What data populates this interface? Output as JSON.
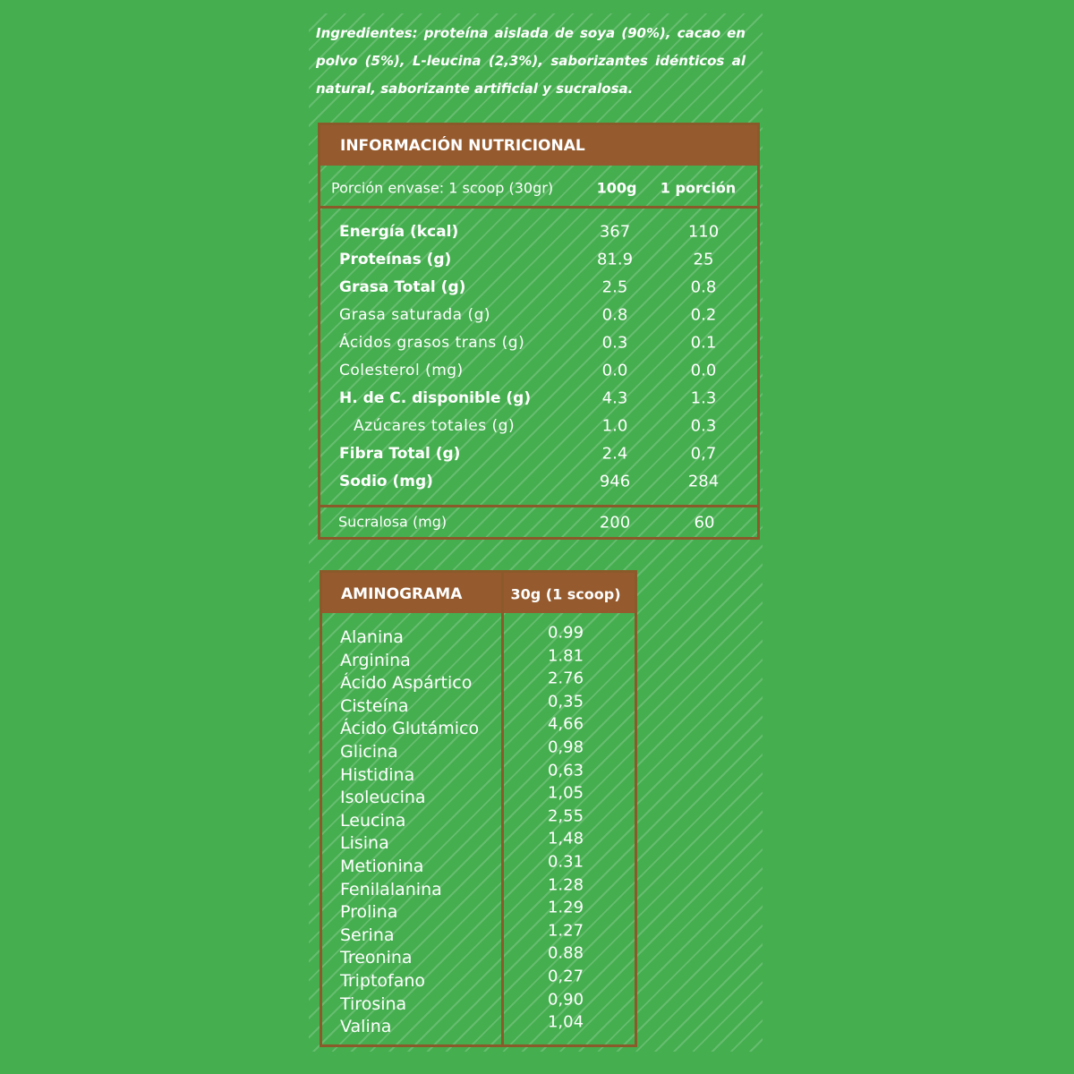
{
  "ingredients": "Ingredientes: proteína aislada de soya (90%), cacao en polvo (5%), L-leucina (2,3%), saborizantes idénticos al natural, saborizante artificial y sucralosa.",
  "nutrition": {
    "title": "INFORMACIÓN NUTRICIONAL",
    "serving": {
      "label": "Porción envase: 1 scoop (30gr)",
      "col_100g": "100g",
      "col_portion": "1 porción"
    },
    "rows": [
      {
        "name": "Energía (kcal)",
        "per_100g": "367",
        "per_portion": "110",
        "bold": true
      },
      {
        "name": "Proteínas (g)",
        "per_100g": "81.9",
        "per_portion": "25",
        "bold": true
      },
      {
        "name": "Grasa Total (g)",
        "per_100g": "2.5",
        "per_portion": "0.8",
        "bold": true
      },
      {
        "name": "Grasa saturada (g)",
        "per_100g": "0.8",
        "per_portion": "0.2",
        "bold": false
      },
      {
        "name": "Ácidos grasos trans (g)",
        "per_100g": "0.3",
        "per_portion": "0.1",
        "bold": false
      },
      {
        "name": "Colesterol (mg)",
        "per_100g": "0.0",
        "per_portion": "0.0",
        "bold": false
      },
      {
        "name": "H. de C. disponible (g)",
        "per_100g": "4.3",
        "per_portion": "1.3",
        "bold": true
      },
      {
        "name": "Azúcares totales (g)",
        "per_100g": "1.0",
        "per_portion": "0.3",
        "bold": false,
        "indent": true
      },
      {
        "name": "Fibra Total (g)",
        "per_100g": "2.4",
        "per_portion": "0,7",
        "bold": true
      },
      {
        "name": "Sodio (mg)",
        "per_100g": "946",
        "per_portion": "284",
        "bold": true
      }
    ],
    "sucralose": {
      "name": "Sucralosa (mg)",
      "per_100g": "200",
      "per_portion": "60"
    }
  },
  "aminogram": {
    "title": "AMINOGRAMA",
    "column": "30g (1 scoop)",
    "rows": [
      {
        "name": "Alanina",
        "value": "0.99"
      },
      {
        "name": "Arginina",
        "value": "1.81"
      },
      {
        "name": "Ácido Aspártico",
        "value": "2.76"
      },
      {
        "name": "Cisteína",
        "value": "0,35"
      },
      {
        "name": "Ácido Glutámico",
        "value": "4,66"
      },
      {
        "name": "Glicina",
        "value": "0,98"
      },
      {
        "name": "Histidina",
        "value": "0,63"
      },
      {
        "name": "Isoleucina",
        "value": "1,05"
      },
      {
        "name": "Leucina",
        "value": "2,55"
      },
      {
        "name": "Lisina",
        "value": "1,48"
      },
      {
        "name": "Metionina",
        "value": "0.31"
      },
      {
        "name": "Fenilalanina",
        "value": "1.28"
      },
      {
        "name": "Prolina",
        "value": "1.29"
      },
      {
        "name": "Serina",
        "value": "1.27"
      },
      {
        "name": "Treonina",
        "value": "0.88"
      },
      {
        "name": "Triptofano",
        "value": "0,27"
      },
      {
        "name": "Tirosina",
        "value": "0,90"
      },
      {
        "name": "Valina",
        "value": "1,04"
      }
    ]
  }
}
